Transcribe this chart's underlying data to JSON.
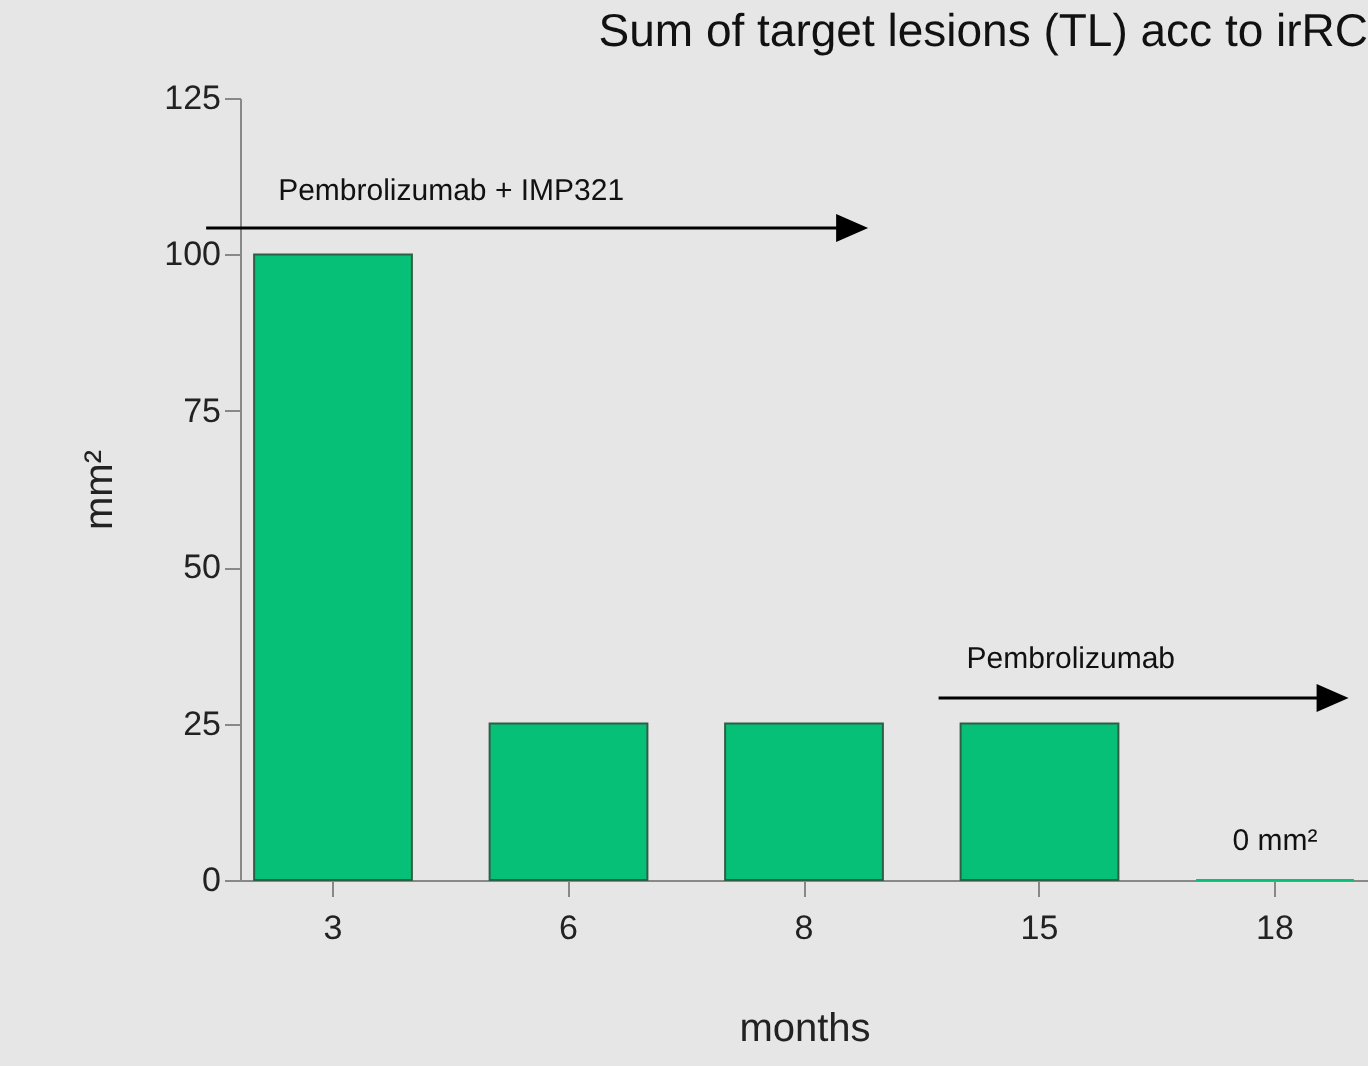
{
  "chart_data": {
    "type": "bar",
    "title": "Sum of target lesions (TL) acc to irRC",
    "xlabel": "months",
    "ylabel": "mm²",
    "categories": [
      "3",
      "6",
      "8",
      "15",
      "18"
    ],
    "values": [
      100,
      25,
      25,
      25,
      0
    ],
    "color": "#06c077",
    "ylim": [
      0,
      125
    ],
    "yticks": [
      0,
      25,
      50,
      75,
      100,
      125
    ],
    "grid": false,
    "annotations": [
      "Pembrolizumab + IMP321",
      "Pembrolizumab",
      "0 mm²"
    ]
  }
}
